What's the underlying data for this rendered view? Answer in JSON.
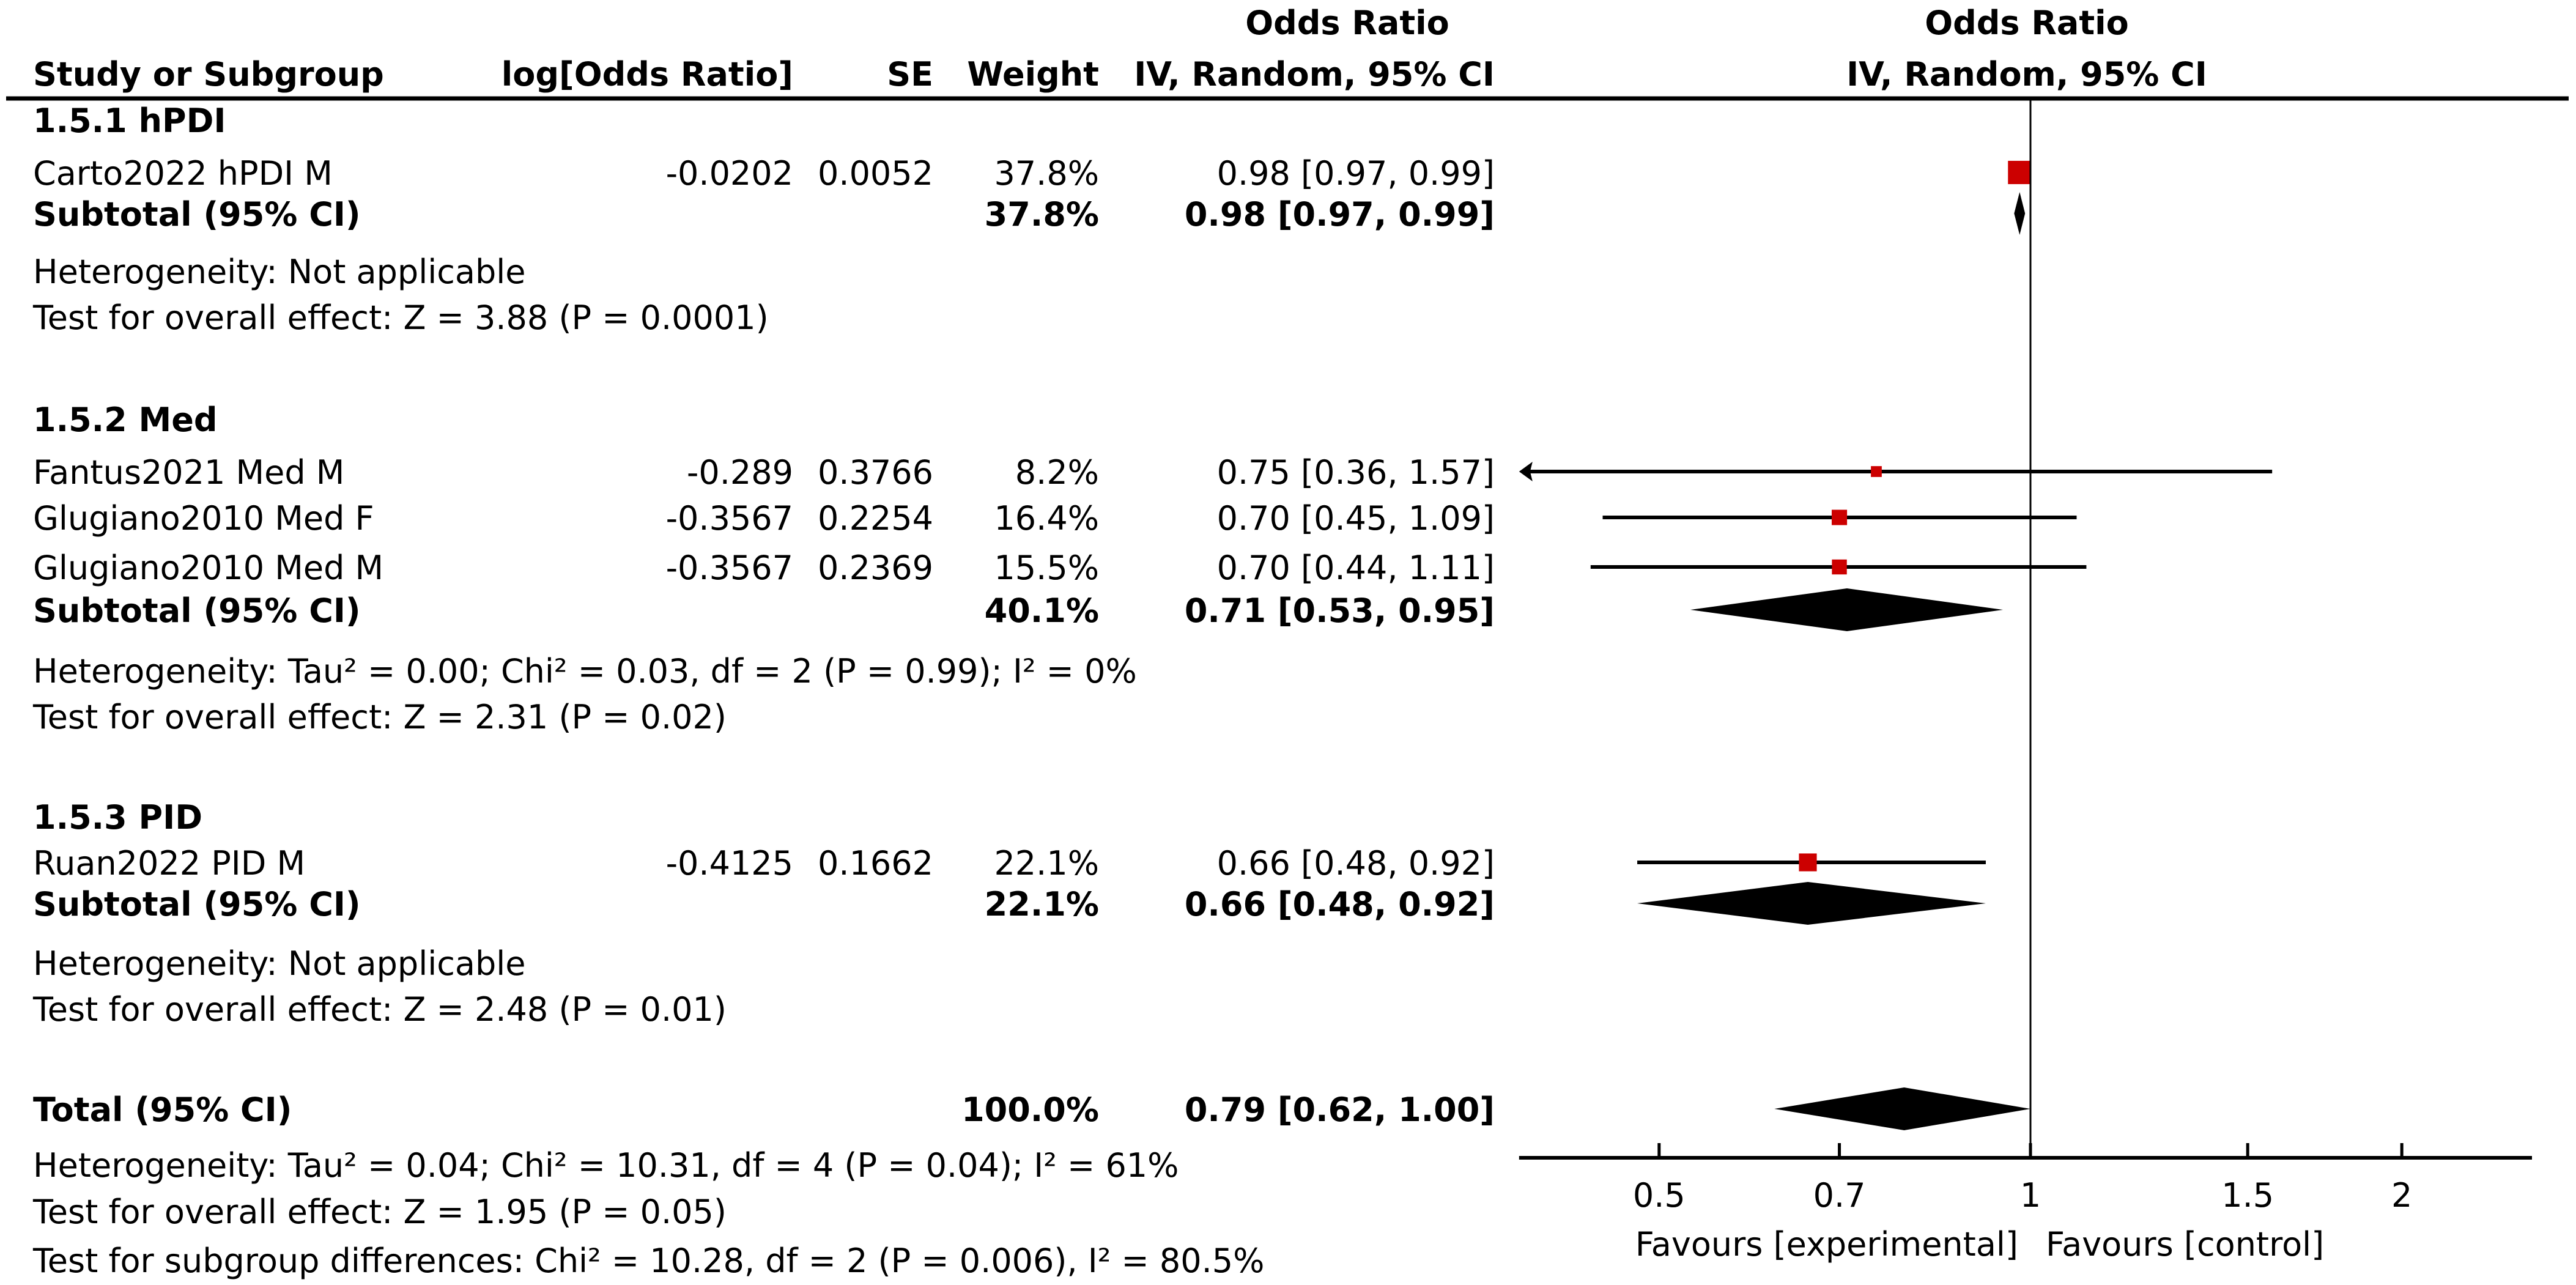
{
  "chart_data": {
    "type": "forest",
    "title": "",
    "columns": {
      "study": "Study or Subgroup",
      "log_or": "log[Odds Ratio]",
      "se": "SE",
      "weight": "Weight",
      "ci_top": "Odds Ratio",
      "ci": "IV, Random, 95% CI"
    },
    "plot_header": {
      "top": "Odds Ratio",
      "bottom": "IV, Random, 95% CI"
    },
    "colors": {
      "study_marker": "#cc0000",
      "pooled_marker": "#000000"
    },
    "xaxis": {
      "scale": "log",
      "xlim": [
        0.385,
        2.55
      ],
      "ticks": [
        0.5,
        0.7,
        1,
        1.5,
        2
      ],
      "tick_labels": [
        "0.5",
        "0.7",
        "1",
        "1.5",
        "2"
      ],
      "reference": 1,
      "label_left": "Favours [experimental]",
      "label_right": "Favours [control]"
    },
    "groups": [
      {
        "label": "1.5.1 hPDI",
        "studies": [
          {
            "name": "Carto2022 hPDI M",
            "log_or": "-0.0202",
            "se": "0.0052",
            "weight": "37.8%",
            "ci_text": "0.98 [0.97, 0.99]",
            "or": 0.98,
            "lo": 0.97,
            "hi": 0.99,
            "w": 37.8
          }
        ],
        "subtotal": {
          "label": "Subtotal (95% CI)",
          "weight": "37.8%",
          "ci_text": "0.98 [0.97, 0.99]",
          "or": 0.98,
          "lo": 0.97,
          "hi": 0.99
        },
        "heterogeneity": "Heterogeneity: Not applicable",
        "overall": "Test for overall effect: Z = 3.88 (P = 0.0001)"
      },
      {
        "label": "1.5.2 Med",
        "studies": [
          {
            "name": "Fantus2021 Med M",
            "log_or": "-0.289",
            "se": "0.3766",
            "weight": "8.2%",
            "ci_text": "0.75 [0.36, 1.57]",
            "or": 0.75,
            "lo": 0.36,
            "hi": 1.57,
            "w": 8.2
          },
          {
            "name": "Glugiano2010 Med F",
            "log_or": "-0.3567",
            "se": "0.2254",
            "weight": "16.4%",
            "ci_text": "0.70 [0.45, 1.09]",
            "or": 0.7,
            "lo": 0.45,
            "hi": 1.09,
            "w": 16.4
          },
          {
            "name": "Glugiano2010 Med M",
            "log_or": "-0.3567",
            "se": "0.2369",
            "weight": "15.5%",
            "ci_text": "0.70 [0.44, 1.11]",
            "or": 0.7,
            "lo": 0.44,
            "hi": 1.11,
            "w": 15.5
          }
        ],
        "subtotal": {
          "label": "Subtotal (95% CI)",
          "weight": "40.1%",
          "ci_text": "0.71 [0.53, 0.95]",
          "or": 0.71,
          "lo": 0.53,
          "hi": 0.95
        },
        "heterogeneity": "Heterogeneity: Tau² = 0.00; Chi² = 0.03, df = 2 (P = 0.99); I² = 0%",
        "overall": "Test for overall effect: Z = 2.31 (P = 0.02)"
      },
      {
        "label": "1.5.3 PID",
        "studies": [
          {
            "name": "Ruan2022 PID M",
            "log_or": "-0.4125",
            "se": "0.1662",
            "weight": "22.1%",
            "ci_text": "0.66 [0.48, 0.92]",
            "or": 0.66,
            "lo": 0.48,
            "hi": 0.92,
            "w": 22.1
          }
        ],
        "subtotal": {
          "label": "Subtotal (95% CI)",
          "weight": "22.1%",
          "ci_text": "0.66 [0.48, 0.92]",
          "or": 0.66,
          "lo": 0.48,
          "hi": 0.92
        },
        "heterogeneity": "Heterogeneity: Not applicable",
        "overall": "Test for overall effect: Z = 2.48 (P = 0.01)"
      }
    ],
    "total": {
      "label": "Total (95% CI)",
      "weight": "100.0%",
      "ci_text": "0.79 [0.62, 1.00]",
      "or": 0.79,
      "lo": 0.62,
      "hi": 1.0,
      "heterogeneity": "Heterogeneity: Tau² = 0.04; Chi² = 10.31, df = 4 (P = 0.04); I² = 61%",
      "overall": "Test for overall effect: Z = 1.95 (P = 0.05)",
      "subgroup": "Test for subgroup differences: Chi² = 10.28, df = 2 (P = 0.006), I² = 80.5%"
    }
  }
}
